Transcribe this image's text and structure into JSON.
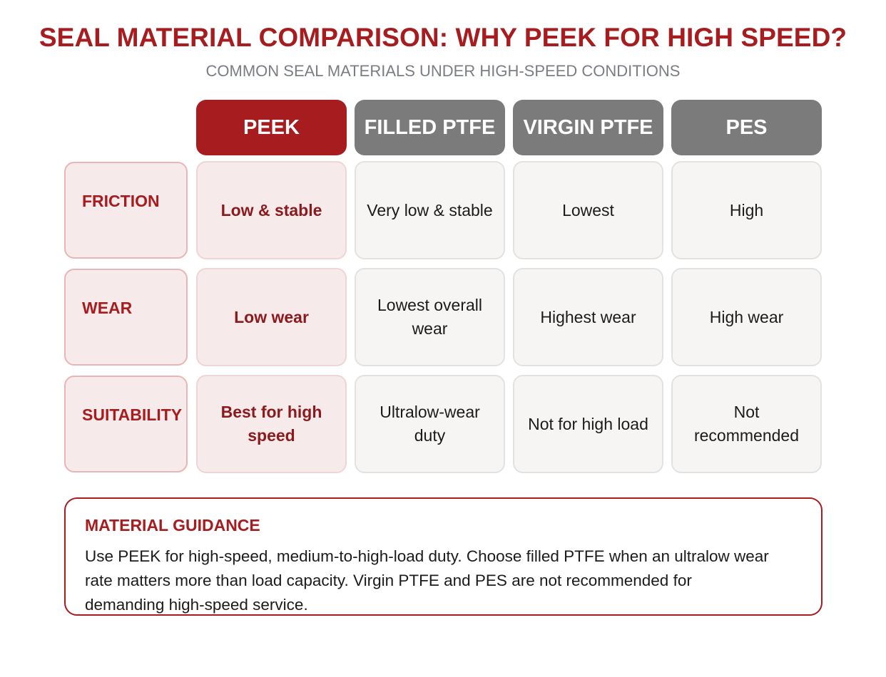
{
  "title": "SEAL MATERIAL COMPARISON: WHY PEEK FOR HIGH SPEED?",
  "subtitle": "COMMON SEAL MATERIALS UNDER HIGH-SPEED CONDITIONS",
  "colors": {
    "accent": "#a61c1f",
    "neutral_header": "#7b7b7b",
    "accent_tint": "#f6eaea",
    "cell_bg": "#f6f5f4"
  },
  "columns": [
    "PEEK",
    "FILLED PTFE",
    "VIRGIN PTFE",
    "PES"
  ],
  "rows": [
    {
      "label": "FRICTION",
      "cells": [
        "Low & stable",
        "Very low & stable",
        "Lowest",
        "High"
      ]
    },
    {
      "label": "WEAR",
      "cells": [
        "Low wear",
        "Lowest overall wear",
        "Highest wear",
        "High wear"
      ]
    },
    {
      "label": "SUITABILITY",
      "cells": [
        "Best for high speed",
        "Ultralow-wear duty",
        "Not for high load",
        "Not recommended"
      ]
    }
  ],
  "guidance": {
    "title": "MATERIAL GUIDANCE",
    "body": "Use PEEK for high-speed, medium-to-high-load duty. Choose filled PTFE when an ultralow wear rate matters more than load capacity. Virgin PTFE and PES are not recommended for demanding high-speed service."
  }
}
